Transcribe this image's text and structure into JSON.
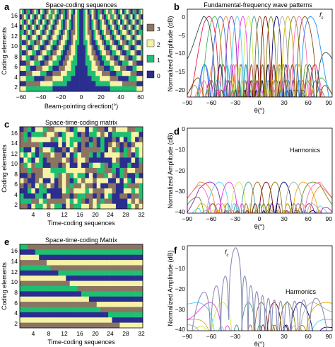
{
  "colors": {
    "level0": "#2a2f8f",
    "level1": "#1fbf72",
    "level2": "#f7f3a6",
    "level3": "#8b7462",
    "frame": "#000000"
  },
  "panels": {
    "a": {
      "letter": "a",
      "title": "Space-coding sequences",
      "ylabel": "Coding elements",
      "xlabel": "Beam-pointing direction(°)",
      "xticks": [
        "−60",
        "−40",
        "−20",
        "0",
        "20",
        "40",
        "60"
      ],
      "yticks": [
        "2",
        "4",
        "6",
        "8",
        "10",
        "12",
        "14",
        "16"
      ],
      "legend": [
        "3",
        "2",
        "1",
        "0"
      ]
    },
    "b": {
      "letter": "b",
      "title": "Fundamental-frequency wave patterns",
      "ylabel": "Normalized Amplitude (dB)",
      "xlabel": "θ(°)",
      "xticks": [
        "−90",
        "−60",
        "−30",
        "0",
        "30",
        "60",
        "90"
      ],
      "yticks": [
        "0",
        "−5",
        "−10",
        "−15",
        "−20"
      ],
      "annotation": "f",
      "annotation_sub": "c"
    },
    "c": {
      "letter": "c",
      "title": "Space-time-coding matrix",
      "ylabel": "Coding elements",
      "xlabel": "Time-coding sequences",
      "xticks": [
        "4",
        "8",
        "12",
        "16",
        "20",
        "24",
        "28",
        "32"
      ],
      "yticks": [
        "2",
        "4",
        "6",
        "8",
        "10",
        "12",
        "14",
        "16"
      ]
    },
    "d": {
      "letter": "d",
      "ylabel": "Normalized Amplitude (dB)",
      "xlabel": "θ(°)",
      "xticks": [
        "−90",
        "−60",
        "−30",
        "0",
        "30",
        "60",
        "90"
      ],
      "yticks": [
        "0",
        "−10",
        "−20",
        "−30",
        "−40"
      ],
      "annotation": "Harmonics"
    },
    "e": {
      "letter": "e",
      "title": "Space-time-coding Matrix",
      "ylabel": "Coding elements",
      "xlabel": "Time-coding sequences",
      "xticks": [
        "4",
        "8",
        "12",
        "16",
        "20",
        "24",
        "28",
        "32"
      ],
      "yticks": [
        "2",
        "4",
        "6",
        "8",
        "10",
        "12",
        "14",
        "16"
      ]
    },
    "f": {
      "letter": "f",
      "ylabel": "Normalized Amplitude (dB)",
      "xlabel": "θ(°)",
      "xticks": [
        "−90",
        "−60",
        "−30",
        "0",
        "30",
        "60",
        "90"
      ],
      "yticks": [
        "0",
        "−10",
        "−20",
        "−30",
        "−40"
      ],
      "annotation": "Harmonics",
      "annotation2": "f",
      "annotation2_sub": "c"
    }
  },
  "chart_data": [
    {
      "panel": "a",
      "type": "heatmap",
      "x_range": [
        -64,
        64
      ],
      "y_range": [
        1,
        16
      ],
      "columns": 60,
      "rows": 16,
      "levels": [
        0,
        1,
        2,
        3
      ]
    },
    {
      "panel": "b",
      "type": "line",
      "x_range": [
        -90,
        90
      ],
      "ylim": [
        -22,
        2
      ],
      "series_count": 20,
      "beam_directions": [
        -63,
        -56,
        -49,
        -42,
        -35,
        -28,
        -21,
        -14,
        -7,
        0,
        7,
        14,
        21,
        28,
        35,
        42,
        49,
        56,
        63,
        -70
      ]
    },
    {
      "panel": "c",
      "type": "heatmap",
      "x_range": [
        1,
        32
      ],
      "y_range": [
        1,
        16
      ],
      "columns": 32,
      "rows": 16,
      "levels": [
        0,
        1,
        2,
        3
      ]
    },
    {
      "panel": "d",
      "type": "line",
      "x_range": [
        -90,
        90
      ],
      "ylim": [
        -41,
        0
      ],
      "series_count": 14,
      "peak_level": -26,
      "beam_directions": [
        -75,
        -62,
        -50,
        -38,
        -26,
        -14,
        -3,
        8,
        19,
        30,
        42,
        54,
        66,
        78
      ]
    },
    {
      "panel": "e",
      "type": "heatmap",
      "x_range": [
        1,
        32
      ],
      "y_range": [
        1,
        16
      ],
      "columns": 32,
      "rows": 16,
      "levels": [
        0,
        1,
        2,
        3
      ]
    },
    {
      "panel": "f",
      "type": "line",
      "x_range": [
        -90,
        90
      ],
      "ylim": [
        -41,
        1
      ],
      "main_beam": {
        "direction": -30,
        "level": 0
      },
      "harmonic_directions": [
        -78,
        -62,
        -46,
        -14,
        2,
        18,
        34,
        50,
        66,
        82
      ],
      "harmonic_level": -27
    }
  ]
}
